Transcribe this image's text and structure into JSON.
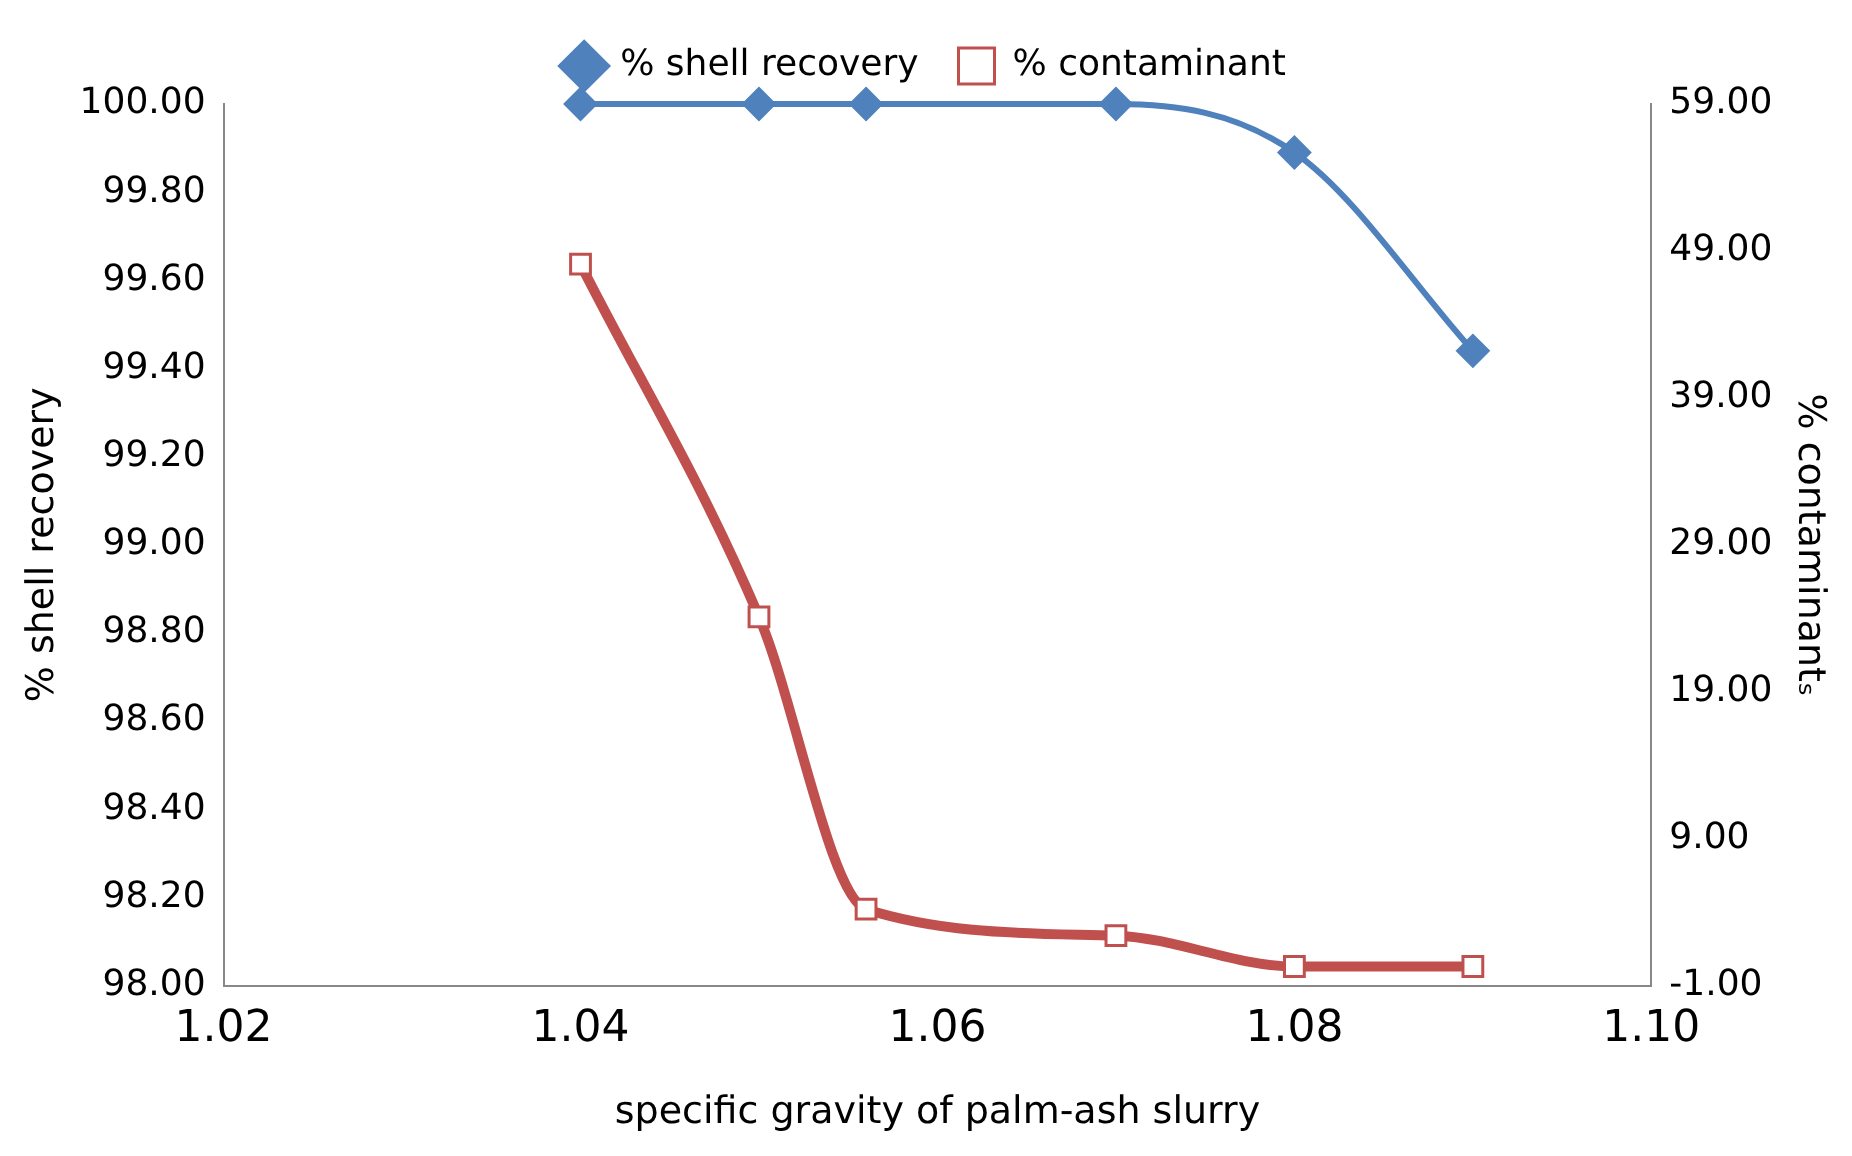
{
  "chart_data": {
    "type": "line",
    "xlabel": "specific gravity of palm-ash slurry",
    "ylabel": "% shell recovery",
    "y2label": "% contaminantₛ",
    "x": [
      1.04,
      1.05,
      1.056,
      1.07,
      1.08,
      1.09
    ],
    "series": [
      {
        "name": "% shell recovery",
        "color": "#4f81bd",
        "marker": "diamond",
        "values": [
          100.0,
          100.0,
          100.0,
          100.0,
          99.89,
          99.44
        ]
      },
      {
        "name": "% contaminant",
        "color": "#c0504d",
        "marker": "square",
        "axis": "y2",
        "values": [
          48.1,
          24.1,
          4.2,
          2.4,
          0.3,
          0.3
        ]
      }
    ],
    "xlim": [
      1.02,
      1.1
    ],
    "xticks": [
      1.02,
      1.04,
      1.06,
      1.08,
      {
        "value": 1.1,
        "label": "1.10"
      }
    ],
    "ylim": [
      98,
      100
    ],
    "yticks": [
      {
        "value": 98,
        "label": "98.00"
      },
      {
        "value": 98.2,
        "label": "98.20"
      },
      {
        "value": 98.4,
        "label": "98.40"
      },
      {
        "value": 98.6,
        "label": "98.60"
      },
      {
        "value": 98.8,
        "label": "98.80"
      },
      {
        "value": 99,
        "label": "99.00"
      },
      {
        "value": 99.2,
        "label": "99.20"
      },
      {
        "value": 99.4,
        "label": "99.40"
      },
      {
        "value": 99.6,
        "label": "99.60"
      },
      {
        "value": 99.8,
        "label": "99.80"
      },
      {
        "value": 100,
        "label": "100.00"
      }
    ],
    "y2lim": [
      -1,
      59
    ],
    "y2ticks": [
      {
        "value": -1,
        "label": "-1.00"
      },
      {
        "value": 9,
        "label": "9.00"
      },
      {
        "value": 19,
        "label": "19.00"
      },
      {
        "value": 29,
        "label": "29.00"
      },
      {
        "value": 39,
        "label": "39.00"
      },
      {
        "value": 49,
        "label": "49.00"
      },
      {
        "value": 59,
        "label": "59.00"
      }
    ],
    "grid": false,
    "legend": "top"
  }
}
